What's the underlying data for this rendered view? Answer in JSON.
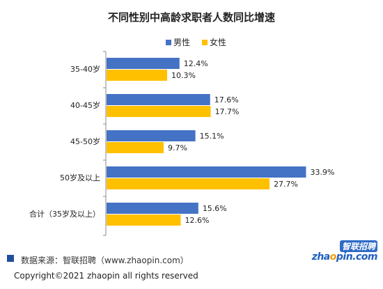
{
  "chart_data": {
    "type": "bar",
    "orientation": "horizontal",
    "title": "不同性别中高龄求职者人数同比增速",
    "categories": [
      "35-40岁",
      "40-45岁",
      "45-50岁",
      "50岁及以上",
      "合计（35岁及以上）"
    ],
    "series": [
      {
        "name": "男性",
        "color": "#4472C4",
        "values": [
          12.4,
          17.6,
          15.1,
          33.9,
          15.6
        ],
        "labels": [
          "12.4%",
          "17.6%",
          "15.1%",
          "33.9%",
          "15.6%"
        ]
      },
      {
        "name": "女性",
        "color": "#FFC000",
        "values": [
          10.3,
          17.7,
          9.7,
          27.7,
          12.6
        ],
        "labels": [
          "10.3%",
          "17.7%",
          "9.7%",
          "27.7%",
          "12.6%"
        ]
      }
    ],
    "xlim": [
      0,
      40
    ],
    "legend_position": "top-center",
    "grid": false
  },
  "footer": {
    "source": "数据来源：智联招聘（www.zhaopin.com）",
    "source_color": "#1F4E9A",
    "copyright": "Copyright©2021 zhaopin all rights reserved"
  },
  "logo": {
    "cn": "智联招聘",
    "en_prefix": "zha",
    "en_o": "o",
    "en_suffix": "pin.com",
    "cn_bg": "#2E6BC6",
    "en_color": "#1F5FC0",
    "o_color": "#F39800"
  }
}
